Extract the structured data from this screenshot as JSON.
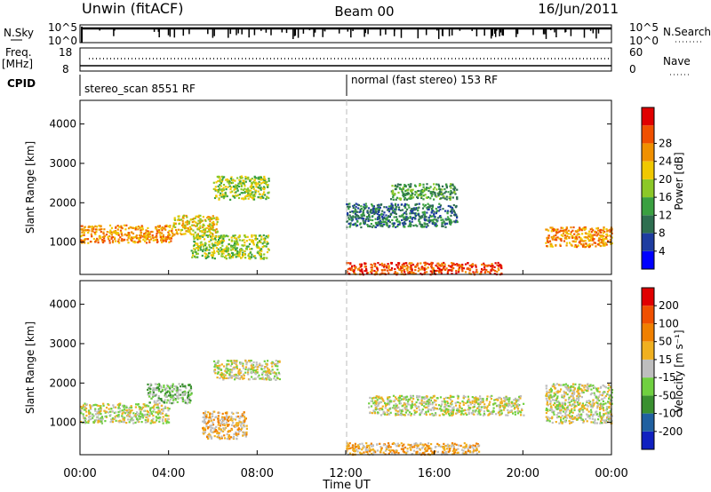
{
  "header": {
    "radar": "Unwin (fitACF)",
    "beam": "Beam 00",
    "date": "16/Jun/2011"
  },
  "aux": {
    "nsky_label": "N.Sky",
    "nsearch_label": "N.Search",
    "noise_ticks_left": [
      "10^5",
      "10^0"
    ],
    "noise_ticks_right": [
      "10^5",
      "10^0"
    ],
    "freq_label": "Freq.",
    "freq_unit": "[MHz]",
    "freq_ticks": [
      "18",
      "8"
    ],
    "nave_label": "Nave",
    "nave_ticks": [
      "60",
      "0"
    ],
    "cpid_label": "CPID",
    "cpid_modes": [
      "stereo_scan 8551 RF",
      "normal (fast stereo) 153 RF"
    ]
  },
  "chart_data": [
    {
      "type": "heatmap",
      "name": "power",
      "ylabel": "Slant Range [km]",
      "xlabel": "Time UT",
      "x_ticks": [
        "00:00",
        "04:00",
        "08:00",
        "12:00",
        "16:00",
        "20:00",
        "00:00"
      ],
      "y_ticks": [
        1000,
        2000,
        3000,
        4000
      ],
      "xlim_hours": [
        0,
        24
      ],
      "ylim_km": [
        180,
        4600
      ],
      "colorbar": {
        "label": "Power [dB]",
        "ticks": [
          "4",
          "8",
          "12",
          "16",
          "20",
          "24",
          "28"
        ],
        "colors": [
          "#0000ff",
          "#1e3ca0",
          "#2e6e50",
          "#3aa040",
          "#8cc828",
          "#f0c800",
          "#f09000",
          "#f05000",
          "#e00000"
        ]
      },
      "bands": [
        {
          "t0": 0.0,
          "t1": 4.2,
          "r": [
            1000,
            1450
          ],
          "level": 6
        },
        {
          "t0": 4.2,
          "t1": 6.2,
          "r": [
            1200,
            1700
          ],
          "level": 5
        },
        {
          "t0": 6.0,
          "t1": 8.5,
          "r": [
            2100,
            2700
          ],
          "level": 4
        },
        {
          "t0": 5.0,
          "t1": 8.5,
          "r": [
            600,
            1200
          ],
          "level": 4
        },
        {
          "t0": 12.0,
          "t1": 19.0,
          "r": [
            200,
            500
          ],
          "level": 7
        },
        {
          "t0": 12.0,
          "t1": 17.0,
          "r": [
            1400,
            2000
          ],
          "level": 2
        },
        {
          "t0": 14.0,
          "t1": 17.0,
          "r": [
            2100,
            2500
          ],
          "level": 3
        },
        {
          "t0": 21.0,
          "t1": 24.0,
          "r": [
            900,
            1400
          ],
          "level": 6
        }
      ]
    },
    {
      "type": "heatmap",
      "name": "velocity",
      "ylabel": "Slant Range [km]",
      "xlabel": "Time UT",
      "x_ticks": [
        "00:00",
        "04:00",
        "08:00",
        "12:00",
        "16:00",
        "20:00",
        "00:00"
      ],
      "y_ticks": [
        1000,
        2000,
        3000,
        4000
      ],
      "xlim_hours": [
        0,
        24
      ],
      "ylim_km": [
        180,
        4600
      ],
      "colorbar": {
        "label": "Velocity [m s⁻¹]",
        "ticks": [
          "200",
          "100",
          "50",
          "15",
          "-15",
          "-50",
          "-100",
          "-200"
        ],
        "colors": [
          "#1020c0",
          "#2060a0",
          "#3a9030",
          "#70d040",
          "#bebebe",
          "#f0b020",
          "#f08000",
          "#f05000",
          "#e00000"
        ]
      },
      "bands": [
        {
          "t0": 0.0,
          "t1": 4.0,
          "r": [
            1000,
            1500
          ],
          "level": 4
        },
        {
          "t0": 3.0,
          "t1": 5.0,
          "r": [
            1500,
            2000
          ],
          "level": 3
        },
        {
          "t0": 6.0,
          "t1": 9.0,
          "r": [
            2100,
            2600
          ],
          "level": 4
        },
        {
          "t0": 5.5,
          "t1": 7.5,
          "r": [
            600,
            1300
          ],
          "level": 5
        },
        {
          "t0": 12.0,
          "t1": 18.0,
          "r": [
            200,
            500
          ],
          "level": 5
        },
        {
          "t0": 13.0,
          "t1": 20.0,
          "r": [
            1200,
            1700
          ],
          "level": 4
        },
        {
          "t0": 21.0,
          "t1": 24.0,
          "r": [
            1000,
            2000
          ],
          "level": 4
        }
      ]
    }
  ]
}
